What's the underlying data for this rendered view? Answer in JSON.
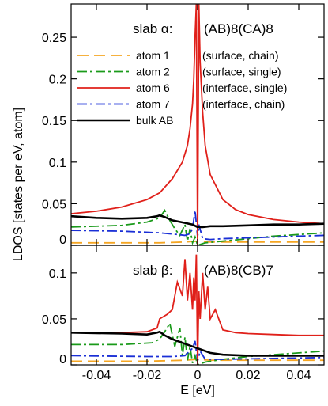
{
  "chart_data": [
    {
      "type": "line",
      "panel": "top",
      "annotation": {
        "slab": "slab α:",
        "composition": "(AB)8(CA)8"
      },
      "xlim": [
        -0.05,
        0.05
      ],
      "ylim": [
        0,
        0.29
      ],
      "yticks": [
        0,
        0.05,
        0.1,
        0.15,
        0.2,
        0.25
      ],
      "ytick_labels": [
        "0",
        "0.05",
        "0.1",
        "0.15",
        "0.2",
        "0.25"
      ],
      "grid": false,
      "legend_position": "top-left",
      "series": [
        {
          "name": "atom 1",
          "note": "(surface, chain)",
          "color": "#f5a623",
          "style": "long-dash",
          "x": [
            -0.05,
            -0.03,
            -0.015,
            -0.005,
            0,
            0.005,
            0.02,
            0.035,
            0.05
          ],
          "y": [
            0.003,
            0.003,
            0.003,
            0.004,
            0.005,
            0.004,
            0.004,
            0.004,
            0.004
          ]
        },
        {
          "name": "atom 2",
          "note": "(surface, single)",
          "color": "#1a9a1a",
          "style": "dash-dot",
          "x": [
            -0.05,
            -0.03,
            -0.02,
            -0.015,
            -0.013,
            -0.011,
            -0.009,
            -0.007,
            -0.005,
            -0.004,
            -0.003,
            -0.002,
            -0.001,
            0,
            0.003,
            0.01,
            0.02,
            0.03,
            0.04,
            0.05
          ],
          "y": [
            0.022,
            0.024,
            0.028,
            0.033,
            0.042,
            0.03,
            0.02,
            0.012,
            0.025,
            0.005,
            0.02,
            0.003,
            0.01,
            0.0,
            0.003,
            0.005,
            0.008,
            0.011,
            0.013,
            0.015
          ]
        },
        {
          "name": "atom 6",
          "note": "(interface, single)",
          "color": "#e0201a",
          "style": "solid",
          "x": [
            -0.05,
            -0.04,
            -0.03,
            -0.02,
            -0.015,
            -0.01,
            -0.006,
            -0.004,
            -0.003,
            -0.002,
            -0.0015,
            -0.001,
            -0.0005,
            0,
            0.0005,
            0.001,
            0.002,
            0.003,
            0.005,
            0.01,
            0.015,
            0.02,
            0.03,
            0.04,
            0.05
          ],
          "y": [
            0.038,
            0.041,
            0.046,
            0.055,
            0.063,
            0.08,
            0.1,
            0.12,
            0.14,
            0.17,
            0.2,
            0.25,
            0.29,
            0.0,
            0.29,
            0.22,
            0.16,
            0.12,
            0.085,
            0.055,
            0.043,
            0.037,
            0.031,
            0.028,
            0.026
          ]
        },
        {
          "name": "atom 7",
          "note": "(interface, chain)",
          "color": "#1a2fd6",
          "style": "dash-dot",
          "x": [
            -0.05,
            -0.03,
            -0.015,
            -0.008,
            -0.005,
            -0.003,
            -0.002,
            -0.001,
            0,
            0.0005,
            0.002,
            0.005,
            0.01,
            0.02,
            0.03,
            0.04,
            0.05
          ],
          "y": [
            0.018,
            0.017,
            0.015,
            0.013,
            0.012,
            0.014,
            0.02,
            0.042,
            0.01,
            0.025,
            0.008,
            0.007,
            0.008,
            0.009,
            0.01,
            0.011,
            0.012
          ]
        },
        {
          "name": "bulk AB",
          "note": "",
          "color": "#000000",
          "style": "solid",
          "x": [
            -0.05,
            -0.04,
            -0.03,
            -0.02,
            -0.016,
            -0.015,
            -0.013,
            -0.01,
            -0.005,
            -0.002,
            0,
            0.002,
            0.005,
            0.01,
            0.02,
            0.03,
            0.04,
            0.05
          ],
          "y": [
            0.035,
            0.033,
            0.032,
            0.033,
            0.035,
            0.036,
            0.034,
            0.03,
            0.027,
            0.025,
            0.022,
            0.022,
            0.023,
            0.023,
            0.024,
            0.025,
            0.025,
            0.026
          ]
        }
      ]
    },
    {
      "type": "line",
      "panel": "bottom",
      "annotation": {
        "slab": "slab β:",
        "composition": "(AB)8(CB)7"
      },
      "xlim": [
        -0.05,
        0.05
      ],
      "ylim": [
        0,
        0.13
      ],
      "yticks": [
        0,
        0.05,
        0.1
      ],
      "ytick_labels": [
        "0",
        "0.05",
        "0.1"
      ],
      "xticks": [
        -0.04,
        -0.02,
        0,
        0.02,
        0.04
      ],
      "xtick_labels": [
        "-0.04",
        "-0.02",
        "0",
        "0.02",
        "0.04"
      ],
      "xlabel": "E [eV]",
      "grid": false,
      "series": [
        {
          "name": "atom 1",
          "color": "#f5a623",
          "style": "long-dash",
          "x": [
            -0.05,
            -0.02,
            -0.005,
            0,
            0.005,
            0.02,
            0.05
          ],
          "y": [
            0.004,
            0.004,
            0.005,
            0.006,
            0.005,
            0.005,
            0.005
          ]
        },
        {
          "name": "atom 2",
          "color": "#1a9a1a",
          "style": "dash-dot",
          "x": [
            -0.05,
            -0.03,
            -0.018,
            -0.015,
            -0.013,
            -0.011,
            -0.009,
            -0.007,
            -0.006,
            -0.005,
            -0.004,
            -0.003,
            -0.002,
            -0.001,
            0,
            0.003,
            0.01,
            0.02,
            0.03,
            0.04,
            0.05
          ],
          "y": [
            0.022,
            0.022,
            0.024,
            0.028,
            0.036,
            0.045,
            0.02,
            0.04,
            0.01,
            0.03,
            0.005,
            0.02,
            0.002,
            0.01,
            0.0,
            0.003,
            0.006,
            0.009,
            0.011,
            0.013,
            0.015
          ]
        },
        {
          "name": "atom 6",
          "color": "#e0201a",
          "style": "solid",
          "x": [
            -0.05,
            -0.03,
            -0.02,
            -0.016,
            -0.015,
            -0.012,
            -0.01,
            -0.008,
            -0.006,
            -0.005,
            -0.004,
            -0.003,
            -0.002,
            -0.0015,
            -0.001,
            -0.0005,
            0,
            0.0005,
            0.001,
            0.002,
            0.003,
            0.004,
            0.005,
            0.007,
            0.01,
            0.015,
            0.02,
            0.03,
            0.04,
            0.05
          ],
          "y": [
            0.035,
            0.035,
            0.036,
            0.04,
            0.05,
            0.055,
            0.06,
            0.09,
            0.075,
            0.115,
            0.07,
            0.1,
            0.06,
            0.095,
            0.07,
            0.12,
            0.0,
            0.08,
            0.05,
            0.1,
            0.06,
            0.085,
            0.05,
            0.06,
            0.038,
            0.035,
            0.034,
            0.033,
            0.032,
            0.032
          ]
        },
        {
          "name": "atom 7",
          "color": "#1a2fd6",
          "style": "dash-dot",
          "x": [
            -0.05,
            -0.02,
            -0.01,
            -0.005,
            -0.002,
            -0.001,
            0,
            0.001,
            0.003,
            0.01,
            0.03,
            0.05
          ],
          "y": [
            0.01,
            0.009,
            0.009,
            0.01,
            0.018,
            0.026,
            0.004,
            0.015,
            0.006,
            0.006,
            0.007,
            0.008
          ]
        },
        {
          "name": "bulk AB",
          "color": "#000000",
          "style": "solid",
          "x": [
            -0.05,
            -0.03,
            -0.02,
            -0.016,
            -0.015,
            -0.013,
            -0.01,
            -0.005,
            -0.002,
            0,
            0.005,
            0.01,
            0.02,
            0.03,
            0.04,
            0.05
          ],
          "y": [
            0.035,
            0.034,
            0.033,
            0.035,
            0.036,
            0.032,
            0.028,
            0.023,
            0.02,
            0.018,
            0.013,
            0.011,
            0.01,
            0.01,
            0.01,
            0.01
          ]
        }
      ]
    }
  ],
  "shared": {
    "ylabel": "LDOS [states per eV, atom]",
    "xlabel": "E [eV]"
  }
}
